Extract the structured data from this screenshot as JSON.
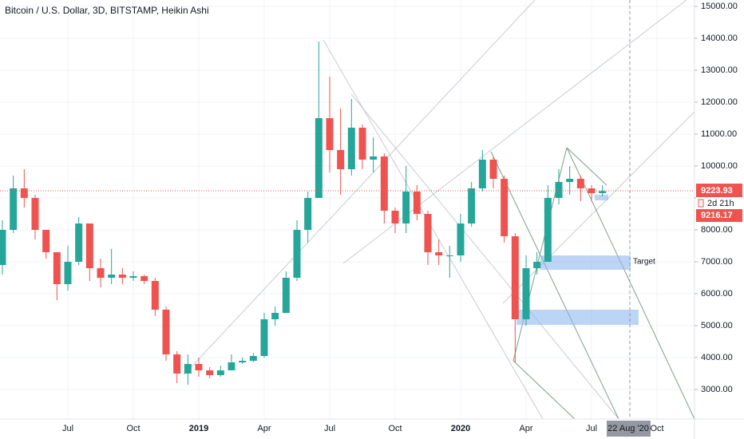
{
  "chart_data": {
    "type": "candlestick",
    "title": "Bitcoin / U.S. Dollar, 3D, BITSTAMP, Heikin Ashi",
    "categories": [
      null,
      null,
      null,
      null,
      null,
      null,
      "Jul",
      null,
      null,
      null,
      null,
      null,
      "Oct",
      null,
      null,
      null,
      null,
      null,
      "2019",
      null,
      null,
      null,
      null,
      null,
      "Apr",
      null,
      null,
      null,
      null,
      null,
      "Jul",
      null,
      null,
      null,
      null,
      null,
      "Oct",
      null,
      null,
      null,
      null,
      null,
      "2020",
      null,
      null,
      null,
      null,
      null,
      "Apr",
      null,
      null,
      null,
      null,
      null,
      "Jul",
      null,
      null,
      null,
      null,
      null,
      "Oct",
      null,
      null,
      null
    ],
    "series": [
      {
        "name": "BTCUSD",
        "up_color": "#26a69a",
        "down_color": "#ef5350",
        "open": [
          6900,
          8000,
          9300,
          9000,
          8000,
          7300,
          6300,
          7000,
          8200,
          6800,
          6500,
          6600,
          6500,
          6550,
          6400,
          5500,
          4100,
          3500,
          3800,
          3600,
          3450,
          3600,
          3850,
          3900,
          4050,
          5200,
          5400,
          6500,
          8000,
          9000,
          11500,
          10500,
          9900,
          11200,
          10200,
          10300,
          8600,
          8200,
          9200,
          8500,
          7300,
          7200,
          7200,
          8200,
          9300,
          10200,
          9600,
          7800,
          5200,
          6800,
          7000,
          9000,
          9500,
          9600,
          9300,
          9150,
          null,
          null,
          null,
          null,
          null,
          null,
          null,
          null
        ],
        "high": [
          8300,
          9700,
          9900,
          9100,
          8000,
          7300,
          7500,
          8400,
          8200,
          7100,
          7400,
          6800,
          6700,
          6600,
          6500,
          5600,
          4200,
          4100,
          4000,
          3700,
          3750,
          4100,
          4000,
          4150,
          5400,
          5600,
          6700,
          8300,
          9200,
          13900,
          12800,
          11800,
          12100,
          11300,
          10900,
          10400,
          8700,
          10000,
          9400,
          8600,
          7700,
          7500,
          8500,
          9500,
          10500,
          10300,
          9700,
          7900,
          7200,
          7300,
          9400,
          9900,
          10000,
          9700,
          9400,
          9400,
          null,
          null,
          null,
          null,
          null,
          null,
          null,
          null
        ],
        "low": [
          6600,
          7900,
          8700,
          7700,
          7100,
          5800,
          6100,
          6900,
          6400,
          6200,
          6300,
          6300,
          6400,
          6300,
          5300,
          3900,
          3200,
          3150,
          3400,
          3350,
          3400,
          3600,
          3800,
          3850,
          4000,
          5000,
          5400,
          6400,
          7600,
          9000,
          9800,
          9100,
          9700,
          9900,
          9800,
          8200,
          7900,
          7900,
          8300,
          6900,
          6900,
          6500,
          7000,
          8100,
          9200,
          9300,
          7600,
          3850,
          5000,
          6600,
          7000,
          8800,
          9100,
          8900,
          8900,
          9050,
          null,
          null,
          null,
          null,
          null,
          null,
          null,
          null
        ],
        "close": [
          8000,
          9300,
          9000,
          8000,
          7300,
          6300,
          7000,
          8200,
          6800,
          6500,
          6600,
          6500,
          6550,
          6400,
          5500,
          4100,
          3500,
          3800,
          3600,
          3450,
          3600,
          3850,
          3900,
          4050,
          5200,
          5400,
          6500,
          8000,
          9000,
          11500,
          10500,
          9900,
          11200,
          10200,
          10300,
          8600,
          8200,
          9200,
          8500,
          7300,
          7200,
          7200,
          8200,
          9300,
          10200,
          9600,
          7800,
          5200,
          6800,
          7000,
          9000,
          9500,
          9600,
          9300,
          9150,
          9216,
          null,
          null,
          null,
          null,
          null,
          null,
          null,
          null
        ]
      }
    ],
    "ylim": [
      2075,
      15200
    ],
    "yticks": [
      {
        "value": 3000,
        "label": "3000.00"
      },
      {
        "value": 4000,
        "label": "4000.00"
      },
      {
        "value": 5000,
        "label": "5000.00"
      },
      {
        "value": 6000,
        "label": "6000.00"
      },
      {
        "value": 7000,
        "label": "7000.00"
      },
      {
        "value": 8000,
        "label": "8000.00"
      },
      {
        "value": 9000,
        "label": "9000.00"
      },
      {
        "value": 10000,
        "label": "10000.00"
      },
      {
        "value": 11000,
        "label": "11000.00"
      },
      {
        "value": 12000,
        "label": "12000.00"
      },
      {
        "value": 13000,
        "label": "13000.00"
      },
      {
        "value": 14000,
        "label": "14000.00"
      },
      {
        "value": 15000,
        "label": "15000.00"
      }
    ],
    "last_price": 9223.93,
    "countdown": "2d 21h",
    "last_close": 9216.17,
    "annotation": "Target",
    "cursor_date": "22 Aug '20",
    "grid": true
  }
}
